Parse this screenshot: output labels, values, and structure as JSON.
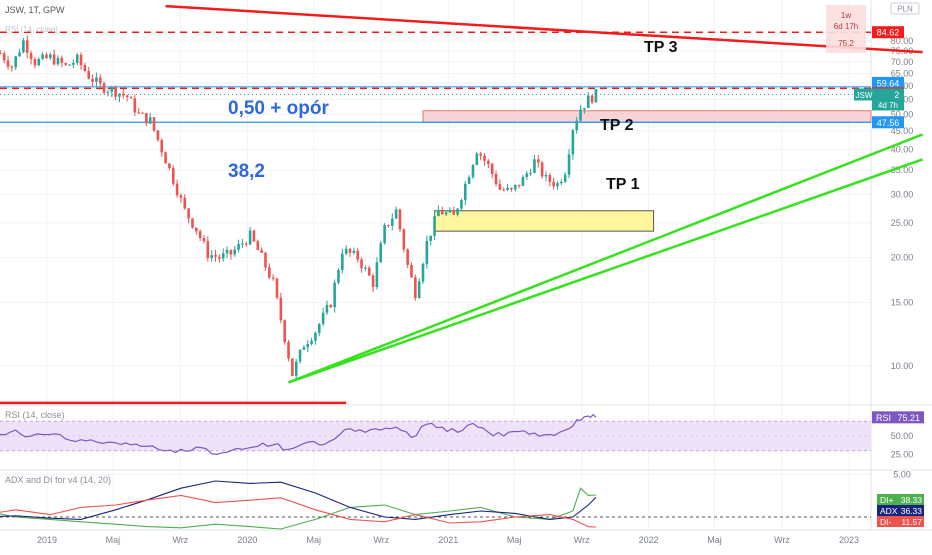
{
  "header": {
    "symbol_line": "JSW, 1T, GPW",
    "sub_line": "RSI (14, close)"
  },
  "currency_badge": "PLN",
  "countdown": {
    "interval": "1w",
    "remaining": "6d 17h",
    "value": "75.2"
  },
  "annotations": {
    "tp3": "TP 3",
    "tp2": "TP 2",
    "tp1": "TP 1",
    "fib50": "0,50 + opór",
    "fib382": "38,2"
  },
  "price_labels": {
    "top_red": "84.62",
    "tp2_blue": "59.64",
    "tp2_red": "59.06",
    "last_symbol": "JSW",
    "last_price": "56.82",
    "last_time": "4d 7h",
    "support_blue": "47.56"
  },
  "colors": {
    "up": "#26a69a",
    "down": "#ef5350",
    "trend_red": "#f21c1c",
    "trend_green": "#36e21e",
    "blue": "#2196f3",
    "zone_pink": "#f6c6c8",
    "zone_yellow": "#fff59d",
    "rsi_band": "#eee2f8",
    "rsi_line": "#7e57c2",
    "adx": "#1a237e",
    "di_plus": "#4caf50",
    "di_minus": "#ef5350",
    "annotation_blue": "#2e67e0"
  },
  "chart_data": [
    {
      "type": "candlestick",
      "price_scale": "log",
      "y_ticks": [
        5,
        10,
        15,
        20,
        25,
        30,
        35,
        40,
        45,
        50,
        55,
        60,
        65,
        70,
        75,
        80
      ],
      "y_tick_labels": [
        "5.00",
        "10.00",
        "15.00",
        "20.00",
        "25.00",
        "30.00",
        "35.00",
        "40.00",
        "45.00",
        "50.00",
        "55.00",
        "60.00",
        "65.00",
        "70.00",
        "75.00",
        "80.00"
      ],
      "x_ticks": [
        {
          "date": "2019-01-01",
          "label": "2019"
        },
        {
          "date": "2019-05-01",
          "label": "Maj"
        },
        {
          "date": "2019-09-01",
          "label": "Wrz"
        },
        {
          "date": "2020-01-01",
          "label": "2020"
        },
        {
          "date": "2020-05-01",
          "label": "Maj"
        },
        {
          "date": "2020-09-01",
          "label": "Wrz"
        },
        {
          "date": "2021-01-01",
          "label": "2021"
        },
        {
          "date": "2021-05-01",
          "label": "Maj"
        },
        {
          "date": "2021-09-01",
          "label": "Wrz"
        },
        {
          "date": "2022-01-01",
          "label": "2022"
        },
        {
          "date": "2022-05-01",
          "label": "Maj"
        },
        {
          "date": "2022-09-01",
          "label": "Wrz"
        },
        {
          "date": "2023-01-01",
          "label": "2023"
        }
      ],
      "close_path": [
        [
          "2018-10-08",
          74
        ],
        [
          "2018-10-29",
          68
        ],
        [
          "2018-11-19",
          80
        ],
        [
          "2018-12-10",
          70
        ],
        [
          "2019-01-07",
          72
        ],
        [
          "2019-02-04",
          68
        ],
        [
          "2019-02-25",
          71
        ],
        [
          "2019-03-18",
          64
        ],
        [
          "2019-04-08",
          60
        ],
        [
          "2019-05-06",
          58
        ],
        [
          "2019-05-27",
          56
        ],
        [
          "2019-06-17",
          50
        ],
        [
          "2019-07-08",
          48
        ],
        [
          "2019-07-29",
          40
        ],
        [
          "2019-08-19",
          33
        ],
        [
          "2019-09-09",
          27
        ],
        [
          "2019-09-30",
          24
        ],
        [
          "2019-10-21",
          20.5
        ],
        [
          "2019-11-11",
          20
        ],
        [
          "2019-12-02",
          20.5
        ],
        [
          "2020-01-06",
          23
        ],
        [
          "2020-01-27",
          20
        ],
        [
          "2020-02-17",
          17
        ],
        [
          "2020-03-09",
          12
        ],
        [
          "2020-03-23",
          9.5
        ],
        [
          "2020-04-13",
          11.5
        ],
        [
          "2020-05-04",
          12.5
        ],
        [
          "2020-06-01",
          15
        ],
        [
          "2020-06-22",
          21
        ],
        [
          "2020-07-20",
          20
        ],
        [
          "2020-08-17",
          17
        ],
        [
          "2020-09-07",
          24
        ],
        [
          "2020-09-28",
          27
        ],
        [
          "2020-10-19",
          19
        ],
        [
          "2020-11-02",
          16
        ],
        [
          "2020-11-23",
          22
        ],
        [
          "2020-12-14",
          27
        ],
        [
          "2021-01-11",
          26
        ],
        [
          "2021-02-01",
          32
        ],
        [
          "2021-02-22",
          40
        ],
        [
          "2021-03-15",
          36
        ],
        [
          "2021-04-05",
          31
        ],
        [
          "2021-04-26",
          30.5
        ],
        [
          "2021-05-17",
          33
        ],
        [
          "2021-06-07",
          37
        ],
        [
          "2021-06-28",
          33
        ],
        [
          "2021-07-19",
          32
        ],
        [
          "2021-08-02",
          35
        ],
        [
          "2021-08-16",
          46
        ],
        [
          "2021-08-30",
          52
        ],
        [
          "2021-09-13",
          55
        ],
        [
          "2021-09-27",
          56.8
        ]
      ],
      "levels": [
        {
          "name": "top-red-dashed",
          "price": 84.62
        },
        {
          "name": "tp2-blue",
          "price": 59.64
        },
        {
          "name": "tp2-red-dashed",
          "price": 59.06
        },
        {
          "name": "last-price-dotted",
          "price": 56.82
        },
        {
          "name": "support-blue",
          "price": 47.56
        }
      ],
      "zones": [
        {
          "name": "tp1-zone",
          "from": "2020-11-16",
          "price_low": 47.56,
          "price_high": 51.2
        },
        {
          "name": "yellow-zone",
          "from": "2020-12-07",
          "to": "2022-01-10",
          "price_low": 23.7,
          "price_high": 27
        }
      ],
      "trendlines": [
        {
          "name": "red-down-trendline",
          "from": [
            "2019-08-05",
            100
          ],
          "to": [
            "2023-05-15",
            74.5
          ]
        },
        {
          "name": "red-bottom-line",
          "from": [
            "2018-09-01",
            7.9
          ],
          "to": [
            "2020-06-29",
            7.9
          ]
        },
        {
          "name": "green-trendline-upper",
          "from": [
            "2020-03-16",
            9
          ],
          "to": [
            "2023-05-15",
            44
          ]
        },
        {
          "name": "green-trendline-lower",
          "from": [
            "2020-03-16",
            9
          ],
          "to": [
            "2023-05-15",
            37.5
          ]
        }
      ]
    },
    {
      "type": "line",
      "name": "RSI",
      "label": "RSI (14, close)",
      "y_ticks": [
        25,
        50,
        75
      ],
      "y_tick_labels": [
        "25.00",
        "50.00",
        "75.00"
      ],
      "band": [
        30,
        70
      ],
      "last_value": "75.21",
      "points": [
        [
          "2018-09-10",
          55
        ],
        [
          "2018-10-08",
          52
        ],
        [
          "2018-11-05",
          58
        ],
        [
          "2018-12-03",
          50
        ],
        [
          "2019-01-07",
          52
        ],
        [
          "2019-02-04",
          46
        ],
        [
          "2019-03-04",
          45
        ],
        [
          "2019-04-01",
          42
        ],
        [
          "2019-05-06",
          41
        ],
        [
          "2019-06-03",
          38
        ],
        [
          "2019-07-01",
          36
        ],
        [
          "2019-08-05",
          30
        ],
        [
          "2019-09-02",
          32
        ],
        [
          "2019-09-30",
          35
        ],
        [
          "2019-10-28",
          26
        ],
        [
          "2019-11-25",
          28
        ],
        [
          "2019-12-23",
          32
        ],
        [
          "2020-01-20",
          36
        ],
        [
          "2020-02-17",
          38
        ],
        [
          "2020-03-16",
          32
        ],
        [
          "2020-04-13",
          40
        ],
        [
          "2020-05-11",
          38
        ],
        [
          "2020-06-08",
          46
        ],
        [
          "2020-07-06",
          60
        ],
        [
          "2020-08-03",
          55
        ],
        [
          "2020-08-31",
          58
        ],
        [
          "2020-09-28",
          62
        ],
        [
          "2020-10-26",
          48
        ],
        [
          "2020-11-23",
          66
        ],
        [
          "2020-12-21",
          62
        ],
        [
          "2021-01-18",
          55
        ],
        [
          "2021-02-15",
          67
        ],
        [
          "2021-03-15",
          55
        ],
        [
          "2021-04-12",
          50
        ],
        [
          "2021-05-10",
          56
        ],
        [
          "2021-06-07",
          54
        ],
        [
          "2021-07-05",
          52
        ],
        [
          "2021-08-02",
          58
        ],
        [
          "2021-08-23",
          72
        ],
        [
          "2021-09-13",
          77
        ],
        [
          "2021-09-27",
          75.21
        ]
      ]
    },
    {
      "type": "line",
      "name": "ADX and DI",
      "label": "ADX and DI for v4 (14, 20)",
      "threshold": 20,
      "series": [
        {
          "name": "DI+",
          "last_value": "38.33",
          "points": [
            [
              "2018-09-10",
              25
            ],
            [
              "2018-11-05",
              20
            ],
            [
              "2019-01-07",
              18
            ],
            [
              "2019-03-04",
              16
            ],
            [
              "2019-05-06",
              14
            ],
            [
              "2019-07-01",
              12
            ],
            [
              "2019-09-02",
              11
            ],
            [
              "2019-11-04",
              14
            ],
            [
              "2020-01-06",
              12
            ],
            [
              "2020-03-02",
              10
            ],
            [
              "2020-05-04",
              18
            ],
            [
              "2020-07-06",
              28
            ],
            [
              "2020-09-07",
              30
            ],
            [
              "2020-11-02",
              22
            ],
            [
              "2021-01-04",
              25
            ],
            [
              "2021-03-01",
              28
            ],
            [
              "2021-05-03",
              20
            ],
            [
              "2021-07-05",
              18
            ],
            [
              "2021-08-16",
              25
            ],
            [
              "2021-08-30",
              44
            ],
            [
              "2021-09-13",
              38
            ],
            [
              "2021-09-27",
              38.33
            ]
          ]
        },
        {
          "name": "ADX",
          "last_value": "36.33",
          "points": [
            [
              "2018-09-10",
              20
            ],
            [
              "2018-11-05",
              21
            ],
            [
              "2019-01-07",
              19
            ],
            [
              "2019-03-04",
              18
            ],
            [
              "2019-05-06",
              26
            ],
            [
              "2019-07-01",
              34
            ],
            [
              "2019-09-02",
              44
            ],
            [
              "2019-11-04",
              50
            ],
            [
              "2020-01-06",
              48
            ],
            [
              "2020-03-02",
              49
            ],
            [
              "2020-05-04",
              40
            ],
            [
              "2020-07-06",
              28
            ],
            [
              "2020-09-07",
              20
            ],
            [
              "2020-11-02",
              18
            ],
            [
              "2021-01-04",
              22
            ],
            [
              "2021-03-01",
              25
            ],
            [
              "2021-05-03",
              23
            ],
            [
              "2021-07-05",
              18
            ],
            [
              "2021-08-16",
              20
            ],
            [
              "2021-09-13",
              30
            ],
            [
              "2021-09-27",
              36.33
            ]
          ]
        },
        {
          "name": "DI-",
          "last_value": "11.57",
          "points": [
            [
              "2018-09-10",
              22
            ],
            [
              "2018-11-05",
              26
            ],
            [
              "2019-01-07",
              22
            ],
            [
              "2019-03-04",
              28
            ],
            [
              "2019-05-06",
              30
            ],
            [
              "2019-07-01",
              34
            ],
            [
              "2019-09-02",
              38
            ],
            [
              "2019-11-04",
              32
            ],
            [
              "2020-01-06",
              34
            ],
            [
              "2020-03-02",
              36
            ],
            [
              "2020-05-04",
              26
            ],
            [
              "2020-07-06",
              18
            ],
            [
              "2020-09-07",
              16
            ],
            [
              "2020-11-02",
              22
            ],
            [
              "2021-01-04",
              15
            ],
            [
              "2021-03-01",
              16
            ],
            [
              "2021-05-03",
              20
            ],
            [
              "2021-07-05",
              22
            ],
            [
              "2021-08-16",
              18
            ],
            [
              "2021-09-13",
              12
            ],
            [
              "2021-09-27",
              11.57
            ]
          ]
        }
      ]
    }
  ]
}
